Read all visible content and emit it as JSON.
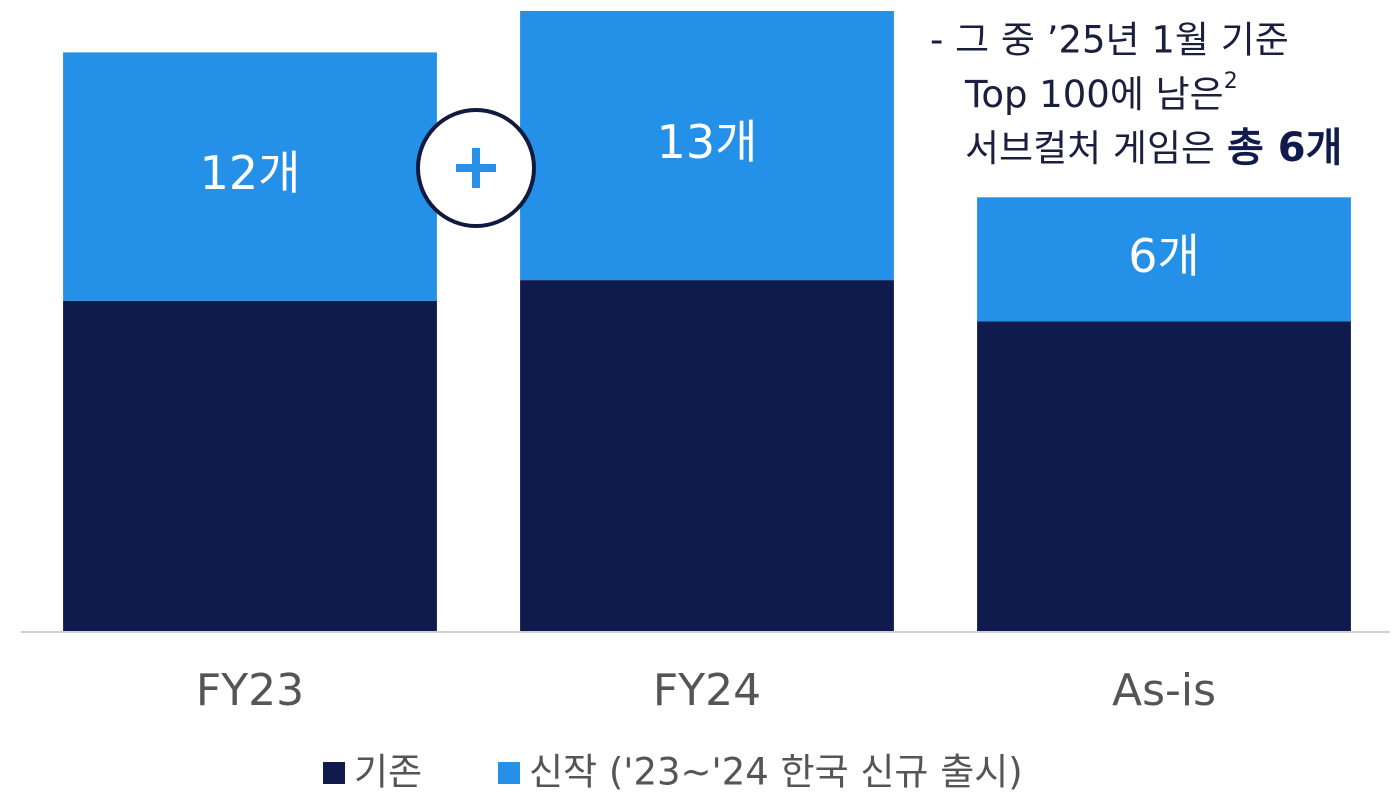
{
  "chart_data": {
    "type": "stacked_bar",
    "categories": [
      "FY23",
      "FY24",
      "As-is"
    ],
    "series": [
      {
        "name": "기존",
        "color": "#0f1a4d",
        "values": [
          16,
          17,
          15
        ]
      },
      {
        "name": "신작 ('23~'24 한국 신규 출시)",
        "color": "#2490e8",
        "values": [
          12,
          13,
          6
        ],
        "value_labels": [
          "12개",
          "13개",
          "6개"
        ]
      }
    ],
    "ylim": [
      0,
      30
    ],
    "annotation": {
      "line1": "- 그 중 ’25년 1월 기준",
      "line2": "Top 100에 남은",
      "footnote": "2",
      "line3": "서브컬처 게임은",
      "line3_bold": "총 6개"
    }
  }
}
